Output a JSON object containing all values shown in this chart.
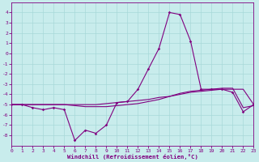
{
  "title": "",
  "xlabel": "Windchill (Refroidissement éolien,°C)",
  "bg_color": "#c8ecec",
  "line_color": "#800080",
  "grid_color": "#a8d8d8",
  "x_values": [
    0,
    1,
    2,
    3,
    4,
    5,
    6,
    7,
    8,
    9,
    10,
    11,
    12,
    13,
    14,
    15,
    16,
    17,
    18,
    19,
    20,
    21,
    22,
    23
  ],
  "y_main": [
    -5.0,
    -5.0,
    -5.3,
    -5.5,
    -5.3,
    -5.5,
    -8.5,
    -7.5,
    -7.8,
    -7.0,
    -4.8,
    -4.7,
    -3.5,
    -1.5,
    0.5,
    4.0,
    3.8,
    1.2,
    -3.5,
    -3.5,
    -3.5,
    -3.8,
    -5.7,
    -5.0
  ],
  "y_trend1": [
    -5.0,
    -5.0,
    -5.0,
    -5.0,
    -5.0,
    -5.0,
    -5.0,
    -5.0,
    -5.0,
    -4.9,
    -4.8,
    -4.7,
    -4.6,
    -4.5,
    -4.3,
    -4.2,
    -4.0,
    -3.8,
    -3.7,
    -3.6,
    -3.5,
    -3.5,
    -3.5,
    -5.0
  ],
  "y_trend2": [
    -5.0,
    -5.0,
    -5.0,
    -5.0,
    -5.0,
    -5.0,
    -5.1,
    -5.2,
    -5.2,
    -5.2,
    -5.1,
    -5.0,
    -4.9,
    -4.7,
    -4.5,
    -4.2,
    -3.9,
    -3.7,
    -3.6,
    -3.5,
    -3.4,
    -3.4,
    -5.3,
    -5.1
  ],
  "ylim": [
    -9,
    5
  ],
  "xlim": [
    0,
    23
  ],
  "yticks": [
    4,
    3,
    2,
    1,
    0,
    -1,
    -2,
    -3,
    -4,
    -5,
    -6,
    -7,
    -8
  ],
  "xticks": [
    0,
    1,
    2,
    3,
    4,
    5,
    6,
    7,
    8,
    9,
    10,
    11,
    12,
    13,
    14,
    15,
    16,
    17,
    18,
    19,
    20,
    21,
    22,
    23
  ]
}
